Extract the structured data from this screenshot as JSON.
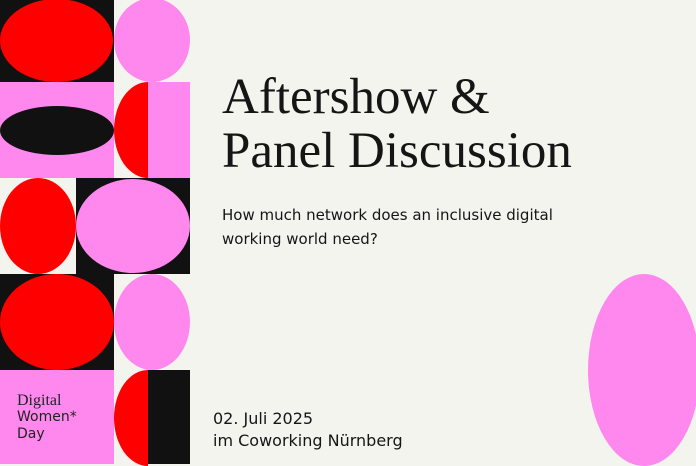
{
  "event": {
    "title_line1": "Aftershow &",
    "title_line2": "Panel Discussion",
    "subtitle": "How much network does an inclusive digital working world need?",
    "date": "02. Juli 2025",
    "location": "im Coworking Nürnberg"
  },
  "logo": {
    "line1": "Digital",
    "line2": "Women*",
    "line3": "Day"
  },
  "colors": {
    "background": "#f4f4ef",
    "red": "#ff0000",
    "pink": "#ff88ee",
    "black": "#111111"
  }
}
